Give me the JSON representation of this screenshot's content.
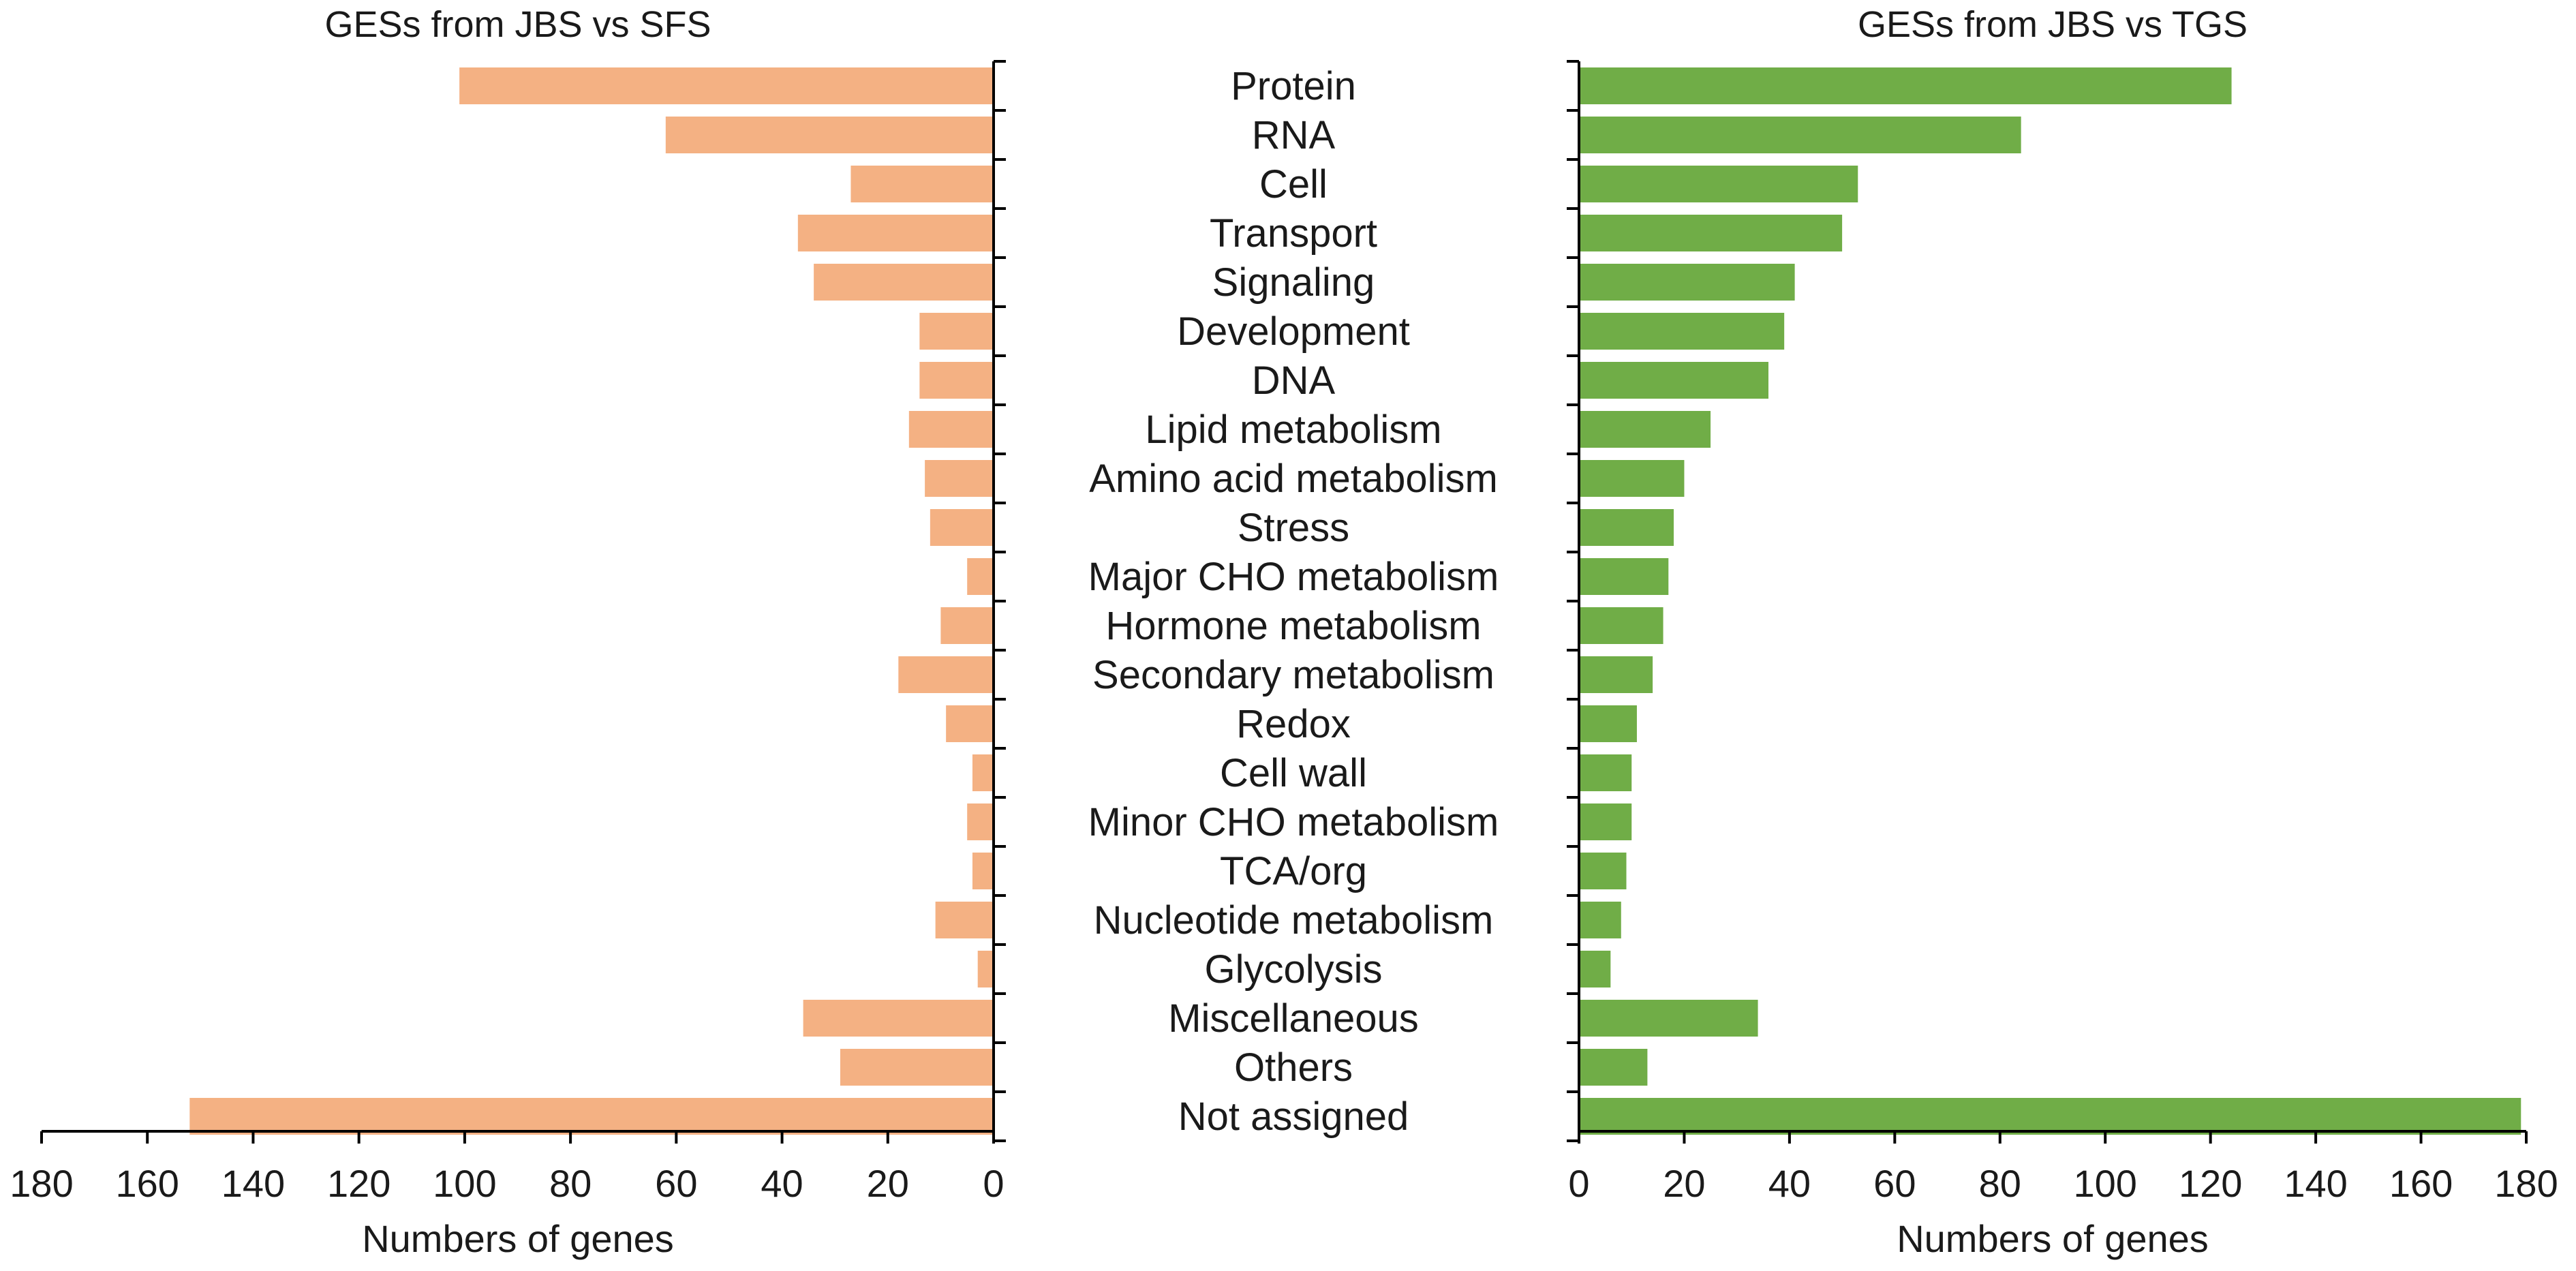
{
  "chart_data": [
    {
      "type": "bar",
      "orientation": "horizontal",
      "title": "GESs from JBS vs SFS",
      "xlabel": "Numbers of genes",
      "ylabel": "",
      "xlim": [
        0,
        180
      ],
      "xticks": [
        180,
        160,
        140,
        120,
        100,
        80,
        60,
        40,
        20,
        0
      ],
      "reversed": true,
      "color": "#F4B183",
      "categories": [
        "Protein",
        "RNA",
        "Cell",
        "Transport",
        "Signaling",
        "Development",
        "DNA",
        "Lipid metabolism",
        "Amino acid metabolism",
        "Stress",
        "Major CHO metabolism",
        "Hormone metabolism",
        "Secondary metabolism",
        "Redox",
        "Cell wall",
        "Minor CHO metabolism",
        "TCA/org",
        "Nucleotide metabolism",
        "Glycolysis",
        "Miscellaneous",
        "Others",
        "Not assigned"
      ],
      "values": [
        101,
        62,
        27,
        37,
        34,
        14,
        14,
        16,
        13,
        12,
        5,
        10,
        18,
        9,
        4,
        5,
        4,
        11,
        3,
        36,
        29,
        152
      ]
    },
    {
      "type": "bar",
      "orientation": "horizontal",
      "title": "GESs from JBS vs TGS",
      "xlabel": "Numbers of genes",
      "ylabel": "",
      "xlim": [
        0,
        180
      ],
      "xticks": [
        0,
        20,
        40,
        60,
        80,
        100,
        120,
        140,
        160,
        180
      ],
      "reversed": false,
      "color": "#70AD47",
      "categories": [
        "Protein",
        "RNA",
        "Cell",
        "Transport",
        "Signaling",
        "Development",
        "DNA",
        "Lipid metabolism",
        "Amino acid metabolism",
        "Stress",
        "Major CHO metabolism",
        "Hormone metabolism",
        "Secondary metabolism",
        "Redox",
        "Cell wall",
        "Minor CHO metabolism",
        "TCA/org",
        "Nucleotide metabolism",
        "Glycolysis",
        "Miscellaneous",
        "Others",
        "Not assigned"
      ],
      "values": [
        124,
        84,
        53,
        50,
        41,
        39,
        36,
        25,
        20,
        18,
        17,
        16,
        14,
        11,
        10,
        10,
        9,
        8,
        6,
        34,
        13,
        179
      ]
    }
  ]
}
